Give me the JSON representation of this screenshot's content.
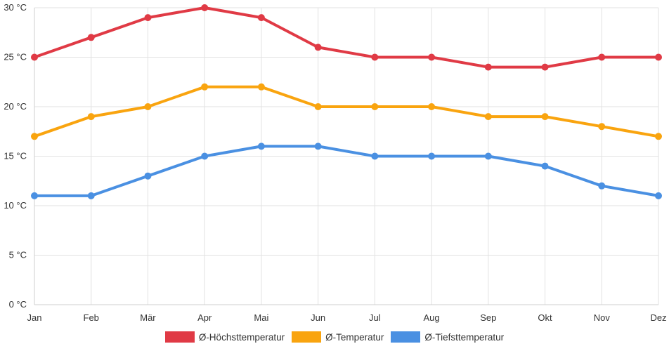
{
  "chart_data": {
    "type": "line",
    "title": "",
    "xlabel": "",
    "ylabel": "",
    "categories": [
      "Jan",
      "Feb",
      "Mär",
      "Apr",
      "Mai",
      "Jun",
      "Jul",
      "Aug",
      "Sep",
      "Okt",
      "Nov",
      "Dez"
    ],
    "ylim": [
      0,
      30
    ],
    "y_ticks": [
      0,
      5,
      10,
      15,
      20,
      25,
      30
    ],
    "y_unit": " °C",
    "grid": true,
    "legend_position": "bottom",
    "series": [
      {
        "name": "Ø-Höchsttemperatur",
        "color": "#e03a45",
        "values": [
          25,
          27,
          29,
          30,
          29,
          26,
          25,
          25,
          24,
          24,
          25,
          25
        ]
      },
      {
        "name": "Ø-Temperatur",
        "color": "#f9a40f",
        "values": [
          17,
          19,
          20,
          22,
          22,
          20,
          20,
          20,
          19,
          19,
          18,
          17
        ]
      },
      {
        "name": "Ø-Tiefsttemperatur",
        "color": "#4a90e2",
        "values": [
          11,
          11,
          13,
          15,
          16,
          16,
          15,
          15,
          15,
          14,
          12,
          11
        ]
      }
    ]
  }
}
